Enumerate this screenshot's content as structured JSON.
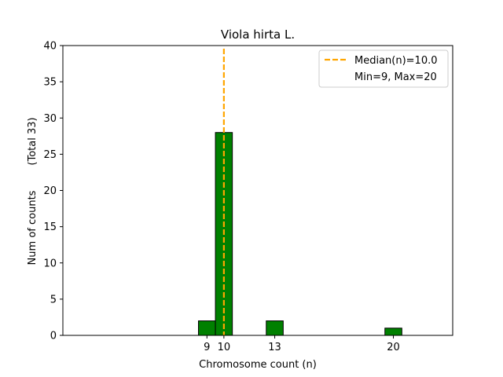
{
  "chart_data": {
    "type": "bar",
    "title": "Viola hirta L.",
    "xlabel": "Chromosome count (n)",
    "ylabel_main": "Num of counts",
    "ylabel_total": "(Total 33)",
    "x_ticks": [
      9,
      10,
      13,
      20
    ],
    "y_ticks": [
      0,
      5,
      10,
      15,
      20,
      25,
      30,
      35,
      40
    ],
    "xlim": [
      0.5,
      23.5
    ],
    "ylim": [
      0,
      40
    ],
    "bins": [
      {
        "x": 9,
        "count": 2
      },
      {
        "x": 10,
        "count": 28
      },
      {
        "x": 13,
        "count": 2
      },
      {
        "x": 20,
        "count": 1
      }
    ],
    "median_line": {
      "x": 10.0,
      "label": "Median(n)=10.0",
      "color": "#ffa500"
    },
    "legend": {
      "placement": "top-right",
      "entries": [
        "Median(n)=10.0",
        "Min=9, Max=20"
      ]
    },
    "bar_color": "#008000",
    "bar_edge_color": "#000000",
    "grid": false
  }
}
